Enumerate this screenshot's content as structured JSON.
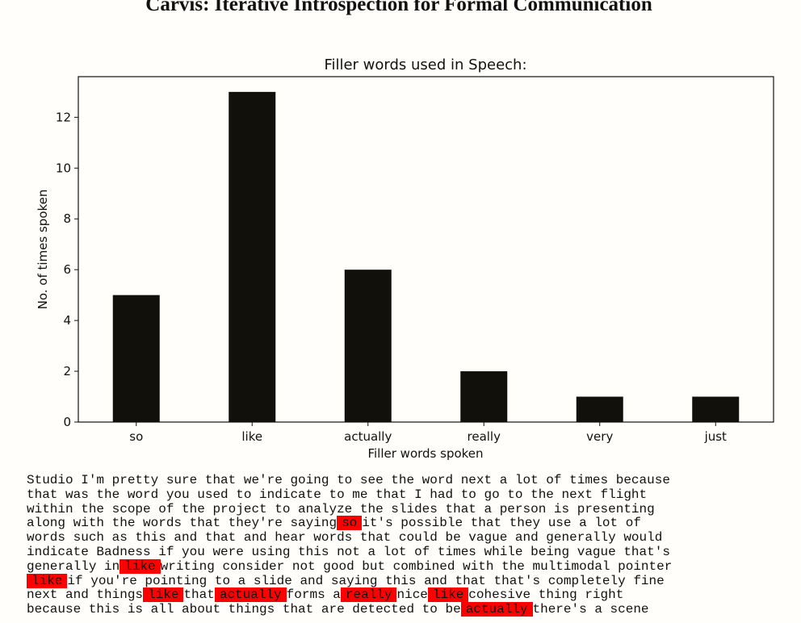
{
  "page": {
    "title": "Carvis: Iterative Introspection for Formal Communication"
  },
  "chart_data": {
    "type": "bar",
    "title": "Filler words used in Speech:",
    "xlabel": "Filler words spoken",
    "ylabel": "No. of times spoken",
    "categories": [
      "so",
      "like",
      "actually",
      "really",
      "very",
      "just"
    ],
    "values": [
      5,
      13,
      6,
      2,
      1,
      1
    ],
    "ylim": [
      0,
      13.6
    ],
    "yticks": [
      0,
      2,
      4,
      6,
      8,
      10,
      12
    ],
    "bar_color": "#12100a",
    "grid": false
  },
  "transcript": {
    "highlight_color": "#ff0000",
    "lines": [
      [
        {
          "t": "Studio I'm pretty sure that we're going to see the word next a lot of times because"
        }
      ],
      [
        {
          "t": "that was the word you used to indicate to me that I had to go to the next flight"
        }
      ],
      [
        {
          "t": "within the scope of the project to analyze the slides that a person is presenting"
        }
      ],
      [
        {
          "t": "along with the words that they're saying"
        },
        {
          "t": "so",
          "hl": true
        },
        {
          "t": "it's possible that they use a lot of"
        }
      ],
      [
        {
          "t": "words such as this and that and hear words that could be vague and generally would"
        }
      ],
      [
        {
          "t": "indicate Badness if you were using this not a lot of times while being vague that's"
        }
      ],
      [
        {
          "t": "generally in"
        },
        {
          "t": "like",
          "hl": true
        },
        {
          "t": "writing consider not good but combined with the multimodal pointer"
        }
      ],
      [
        {
          "t": "like",
          "hl": true
        },
        {
          "t": "if you're pointing to a slide and saying this and that that's completely fine"
        }
      ],
      [
        {
          "t": "next and things"
        },
        {
          "t": "like",
          "hl": true
        },
        {
          "t": "that"
        },
        {
          "t": "actually",
          "hl": true
        },
        {
          "t": "forms a"
        },
        {
          "t": "really",
          "hl": true
        },
        {
          "t": "nice"
        },
        {
          "t": "like",
          "hl": true
        },
        {
          "t": "cohesive thing right"
        }
      ],
      [
        {
          "t": "because this is all about things that are detected to be"
        },
        {
          "t": "actually",
          "hl": true
        },
        {
          "t": "there's a scene"
        }
      ]
    ]
  }
}
